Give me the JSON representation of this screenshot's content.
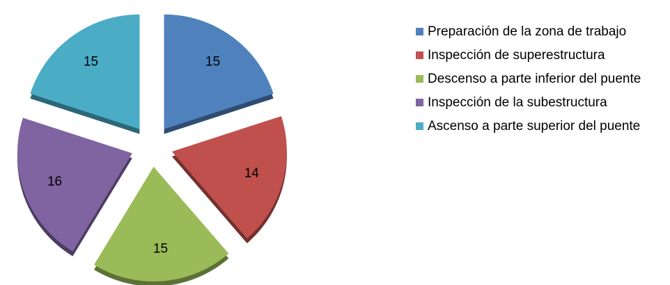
{
  "chart_data": {
    "type": "pie",
    "categories": [
      "Preparación de la zona de trabajo",
      "Inspección de superestructura",
      "Descenso a parte inferior del puente",
      "Inspección de la subestructura",
      "Ascenso a parte superior del puente"
    ],
    "values": [
      15,
      14,
      15,
      16,
      15
    ],
    "colors": [
      "#4f81bd",
      "#c0504d",
      "#9bbb59",
      "#8064a2",
      "#4bacc6"
    ],
    "legend": "right"
  }
}
